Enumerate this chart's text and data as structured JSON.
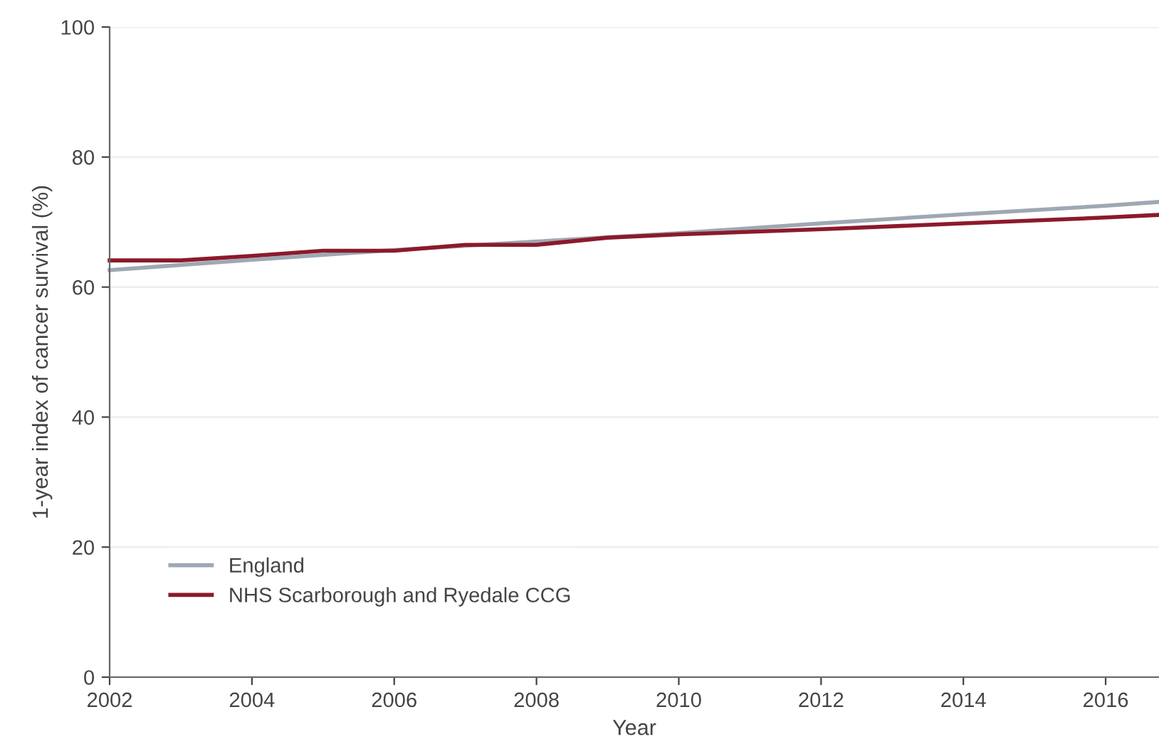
{
  "chart_data": {
    "type": "line",
    "xlabel": "Year",
    "ylabel": "1-year index of cancer survival (%)",
    "xlim": [
      2002,
      2016.75
    ],
    "xticks": [
      2002,
      2004,
      2006,
      2008,
      2010,
      2012,
      2014,
      2016
    ],
    "ylim": [
      0,
      100
    ],
    "yticks": [
      0,
      20,
      40,
      60,
      80,
      100
    ],
    "grid": "y",
    "legend": "bottom left",
    "marker": "none",
    "line_style": "solid",
    "series": [
      {
        "name": "England",
        "color": "#9ea8b3",
        "x": [
          2002,
          2004,
          2006,
          2008,
          2010,
          2012,
          2014,
          2016,
          2016.75
        ],
        "values": [
          62.6,
          64.2,
          65.7,
          67.0,
          68.3,
          69.8,
          71.2,
          72.5,
          73.1
        ]
      },
      {
        "name": "NHS Scarborough and Ryedale CCG",
        "color": "#8b1a2b",
        "x": [
          2002,
          2003,
          2004,
          2005,
          2006,
          2007,
          2008,
          2009,
          2010,
          2012,
          2014,
          2016,
          2016.75
        ],
        "values": [
          64.1,
          64.1,
          64.8,
          65.6,
          65.6,
          66.5,
          66.5,
          67.6,
          68.1,
          68.9,
          69.8,
          70.7,
          71.1
        ]
      }
    ]
  }
}
